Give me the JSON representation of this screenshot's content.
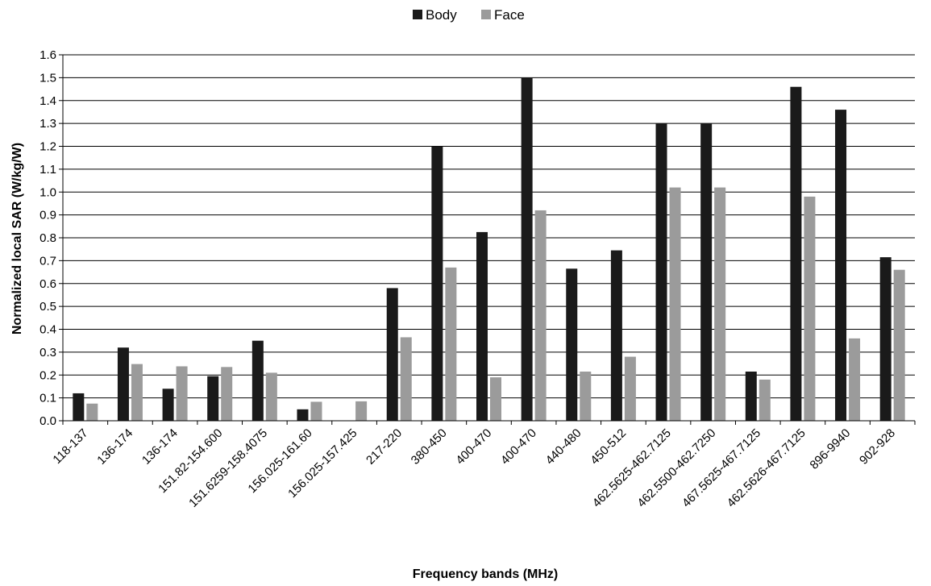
{
  "chart_data": {
    "type": "bar",
    "title": "",
    "xlabel": "Frequency bands (MHz)",
    "ylabel": "Normalized local SAR (W/kg/W)",
    "ylim": [
      0,
      1.6
    ],
    "yticks": [
      "0.0",
      "0.1",
      "0.2",
      "0.3",
      "0.4",
      "0.5",
      "0.6",
      "0.7",
      "0.8",
      "0.9",
      "1.0",
      "1.1",
      "1.2",
      "1.3",
      "1.4",
      "1.5",
      "1.6"
    ],
    "grid": true,
    "legend_position": "top-center",
    "categories": [
      "118-137",
      "136-174",
      "136-174",
      "151.82-154.600",
      "151.6259-158.4075",
      "156.025-161.60",
      "156.025-157.425",
      "217-220",
      "380-450",
      "400-470",
      "400-470",
      "440-480",
      "450-512",
      "462.5625-462.7125",
      "462.5500-462.7250",
      "467.5625-467.7125",
      "462.5626-467.7125",
      "896-9940",
      "902-928"
    ],
    "series": [
      {
        "name": "Body",
        "color": "#1a1a1a",
        "values": [
          0.12,
          0.32,
          0.14,
          0.195,
          0.35,
          0.05,
          0.0,
          0.58,
          1.2,
          0.825,
          1.5,
          0.665,
          0.745,
          1.3,
          1.3,
          0.215,
          1.46,
          1.36,
          0.715
        ]
      },
      {
        "name": "Face",
        "color": "#9b9b9b",
        "values": [
          0.075,
          0.248,
          0.238,
          0.235,
          0.21,
          0.083,
          0.085,
          0.365,
          0.67,
          0.19,
          0.92,
          0.215,
          0.28,
          1.02,
          1.02,
          0.18,
          0.98,
          0.36,
          0.66
        ]
      }
    ]
  }
}
